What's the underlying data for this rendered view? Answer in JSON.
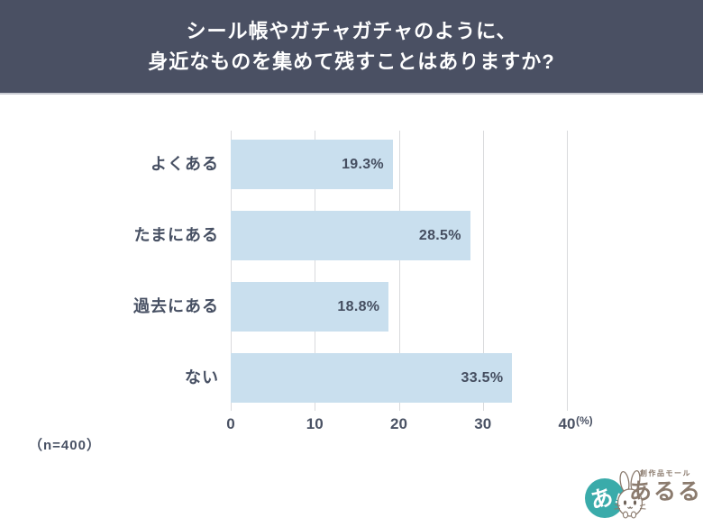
{
  "header": {
    "title_line1": "シール帳やガチャガチャのように、",
    "title_line2": "身近なものを集めて残すことはありますか?"
  },
  "footer": {
    "sample_size": "（n=400）"
  },
  "logo": {
    "text_small": "創作品モール",
    "text_main": "あるる",
    "badge_char": "あ",
    "badge_exclaim": "!",
    "badge_color": "#3aabaa",
    "text_color": "#8b7b6e"
  },
  "chart_data": {
    "type": "bar",
    "orientation": "horizontal",
    "title": "シール帳やガチャガチャのように、身近なものを集めて残すことはありますか?",
    "categories": [
      "よくある",
      "たまにある",
      "過去にある",
      "ない"
    ],
    "values": [
      19.3,
      28.5,
      18.8,
      33.5
    ],
    "value_labels": [
      "19.3%",
      "28.5%",
      "18.8%",
      "33.5%"
    ],
    "xlabel": "",
    "ylabel": "",
    "x_unit_label": "(%)",
    "xlim": [
      0,
      40
    ],
    "xticks": [
      0,
      10,
      20,
      30,
      40
    ],
    "grid": true,
    "legend_position": "none",
    "sample_note": "（n=400）",
    "colors": {
      "bar": "#c9dfee",
      "grid": "#d9dadd",
      "text": "#475063",
      "header_bg": "#4a5063"
    }
  }
}
